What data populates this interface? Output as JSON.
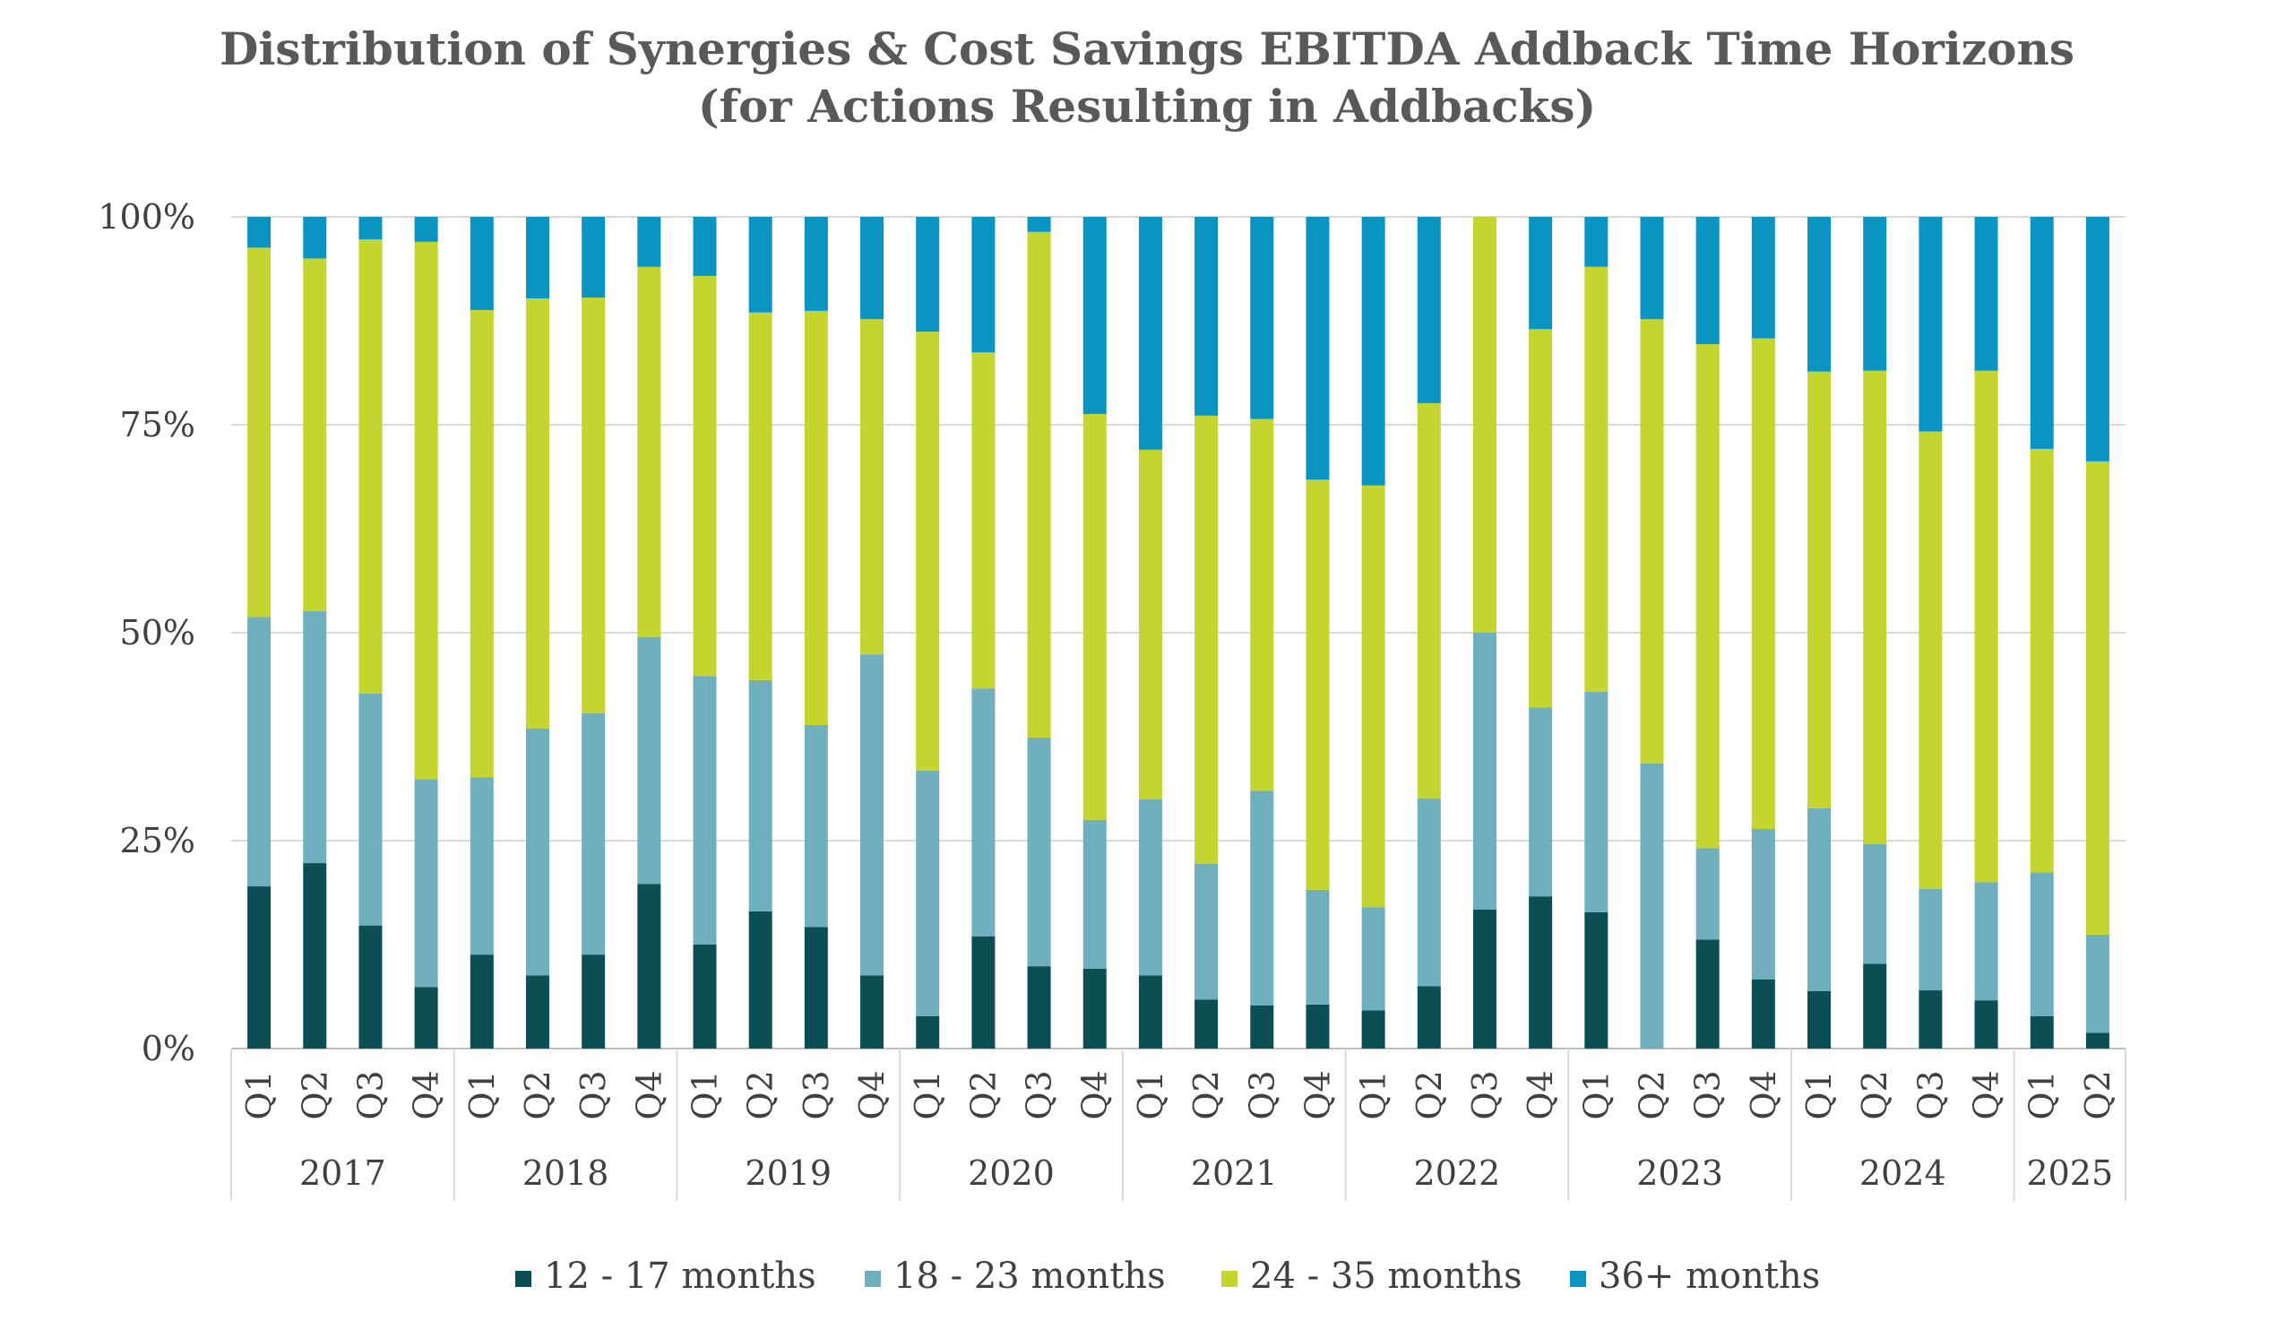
{
  "chart_data": {
    "type": "bar",
    "stacked": true,
    "percent": true,
    "title": "Distribution of Synergies & Cost Savings EBITDA Addback Time Horizons",
    "subtitle": "(for Actions Resulting in Addbacks)",
    "xlabel": "",
    "ylabel": "",
    "ylim": [
      0,
      100
    ],
    "y_ticks": [
      "0%",
      "25%",
      "50%",
      "75%",
      "100%"
    ],
    "y_tick_values": [
      0,
      25,
      50,
      75,
      100
    ],
    "grid": true,
    "legend_position": "bottom",
    "categories": [
      "Q1",
      "Q2",
      "Q3",
      "Q4",
      "Q1",
      "Q2",
      "Q3",
      "Q4",
      "Q1",
      "Q2",
      "Q3",
      "Q4",
      "Q1",
      "Q2",
      "Q3",
      "Q4",
      "Q1",
      "Q2",
      "Q3",
      "Q4",
      "Q1",
      "Q2",
      "Q3",
      "Q4",
      "Q1",
      "Q2",
      "Q3",
      "Q4",
      "Q1",
      "Q2",
      "Q3",
      "Q4",
      "Q1",
      "Q2"
    ],
    "year_groups": [
      {
        "label": "2017",
        "count": 4
      },
      {
        "label": "2018",
        "count": 4
      },
      {
        "label": "2019",
        "count": 4
      },
      {
        "label": "2020",
        "count": 4
      },
      {
        "label": "2021",
        "count": 4
      },
      {
        "label": "2022",
        "count": 4
      },
      {
        "label": "2023",
        "count": 4
      },
      {
        "label": "2024",
        "count": 4
      },
      {
        "label": "2025",
        "count": 2
      }
    ],
    "series": [
      {
        "name": "12 - 17 months",
        "color": "#0b4f55",
        "values": [
          19.5,
          22.3,
          14.8,
          7.4,
          11.3,
          8.8,
          11.3,
          19.8,
          12.5,
          16.5,
          14.6,
          8.8,
          3.9,
          13.5,
          9.9,
          9.6,
          8.8,
          5.9,
          5.2,
          5.3,
          4.6,
          7.5,
          16.7,
          18.3,
          16.4,
          0,
          13.1,
          8.3,
          6.9,
          10.2,
          7.0,
          5.8,
          3.9,
          1.9
        ]
      },
      {
        "name": "18 - 23 months",
        "color": "#70afbd",
        "values": [
          32.4,
          30.3,
          27.9,
          25.0,
          21.3,
          29.7,
          29.0,
          29.7,
          32.3,
          27.8,
          24.3,
          38.6,
          29.5,
          29.8,
          27.5,
          17.9,
          21.2,
          16.3,
          25.8,
          13.8,
          12.4,
          22.6,
          33.3,
          22.7,
          26.5,
          34.3,
          11.0,
          18.1,
          22.0,
          14.4,
          12.2,
          14.2,
          17.3,
          11.8
        ]
      },
      {
        "name": "24 - 35 months",
        "color": "#c4d52f",
        "values": [
          44.4,
          42.4,
          54.6,
          64.6,
          56.2,
          51.7,
          50.0,
          44.5,
          48.1,
          44.2,
          49.8,
          40.3,
          52.8,
          40.4,
          60.8,
          48.8,
          42.0,
          53.9,
          44.7,
          49.3,
          50.7,
          47.5,
          50.0,
          45.5,
          51.1,
          53.4,
          60.6,
          59.0,
          52.5,
          56.9,
          55.0,
          61.5,
          50.9,
          56.9
        ]
      },
      {
        "name": "36+ months",
        "color": "#0994c1",
        "values": [
          3.7,
          5.0,
          2.7,
          3.0,
          11.2,
          9.8,
          9.7,
          6.0,
          7.1,
          11.5,
          11.3,
          12.3,
          13.8,
          16.3,
          1.8,
          23.7,
          28.0,
          23.9,
          24.3,
          31.6,
          32.3,
          22.4,
          0,
          13.5,
          6.0,
          12.3,
          15.3,
          14.6,
          18.6,
          18.5,
          25.8,
          18.5,
          27.9,
          29.4
        ]
      }
    ]
  }
}
